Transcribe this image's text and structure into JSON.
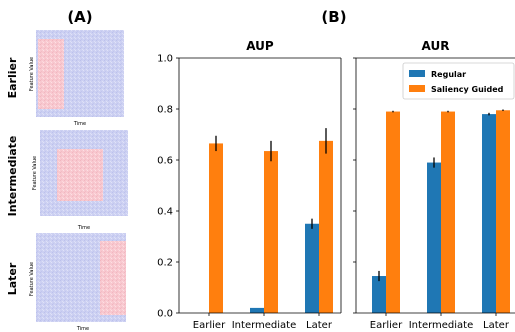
{
  "panel_a": {
    "label": "(A)",
    "rows": [
      {
        "label": "Earlier",
        "ylabel": "Feature Value",
        "xlabel": "Time",
        "highlight_start": 0.0,
        "highlight_end": 0.33
      },
      {
        "label": "Intermediate",
        "ylabel": "Feature Value",
        "xlabel": "Time",
        "highlight_start": 0.33,
        "highlight_end": 0.67
      },
      {
        "label": "Later",
        "ylabel": "Feature Value",
        "xlabel": "Time",
        "highlight_start": 0.67,
        "highlight_end": 1.0
      }
    ],
    "colors": {
      "background": "#ccd0f2",
      "highlight": "#f8c8cf"
    }
  },
  "panel_b": {
    "label": "(B)"
  },
  "chart_data": [
    {
      "type": "bar",
      "title": "AUP",
      "categories": [
        "Earlier",
        "Intermediate",
        "Later"
      ],
      "series": [
        {
          "name": "Regular",
          "color": "#1f77b4",
          "values": [
            0.0,
            0.02,
            0.35
          ],
          "errors": [
            0.0,
            0.0,
            0.02
          ]
        },
        {
          "name": "Saliency Guided",
          "color": "#ff7f0e",
          "values": [
            0.665,
            0.635,
            0.675
          ],
          "errors": [
            0.03,
            0.04,
            0.05
          ]
        }
      ],
      "ylim": [
        0,
        1.0
      ],
      "yticks": [
        "0.0",
        "0.2",
        "0.4",
        "0.6",
        "0.8",
        "1.0"
      ],
      "grid": false
    },
    {
      "type": "bar",
      "title": "AUR",
      "categories": [
        "Earlier",
        "Intermediate",
        "Later"
      ],
      "category_labels_shown": [
        "Earlier",
        "Intermediate",
        "Later"
      ],
      "series": [
        {
          "name": "Regular",
          "color": "#1f77b4",
          "values": [
            0.145,
            0.59,
            0.78
          ],
          "errors": [
            0.02,
            0.02,
            0.005
          ]
        },
        {
          "name": "Saliency Guided",
          "color": "#ff7f0e",
          "values": [
            0.79,
            0.79,
            0.795
          ],
          "errors": [
            0.003,
            0.003,
            0.003
          ]
        }
      ],
      "ylim": [
        0,
        1.0
      ],
      "legend": {
        "placement": "top-right",
        "entries": [
          "Regular",
          "Saliency Guided"
        ]
      },
      "grid": false
    }
  ]
}
